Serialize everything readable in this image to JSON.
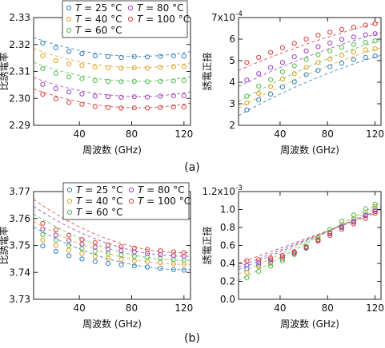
{
  "panel_labels": [
    "(a)",
    "(b)"
  ],
  "temperatures": [
    25,
    40,
    60,
    80,
    100
  ],
  "series_colors": [
    "#2f7dbf",
    "#e0a020",
    "#4cbf4c",
    "#9b3fbf",
    "#d93c3c"
  ],
  "legend": [
    {
      "var": "T",
      "eq": "=",
      "value": "25",
      "unit": "°C"
    },
    {
      "var": "T",
      "eq": "=",
      "value": "40",
      "unit": "°C"
    },
    {
      "var": "T",
      "eq": "=",
      "value": "60",
      "unit": "°C"
    },
    {
      "var": "T",
      "eq": "=",
      "value": "80",
      "unit": "°C"
    },
    {
      "var": "T",
      "eq": "=",
      "value": "100",
      "unit": "°C"
    }
  ],
  "chart_data": [
    {
      "type": "scatter",
      "panel": "(a)",
      "xlabel": "周波数 (GHz)",
      "ylabel": "比誘電率",
      "xlim": [
        5,
        125
      ],
      "ylim": [
        2.29,
        2.33
      ],
      "xticks": [
        40,
        80,
        120
      ],
      "yticks": [
        2.29,
        2.3,
        2.31,
        2.32,
        2.33
      ],
      "ytick_labels": [
        "2.29",
        "2.30",
        "2.31",
        "2.32",
        "2.33"
      ],
      "exponent_label": "",
      "legend": "top-left",
      "x": [
        12,
        22,
        32,
        42,
        52,
        62,
        72,
        82,
        92,
        102,
        112,
        120
      ],
      "series": [
        {
          "values": [
            2.3205,
            2.3188,
            2.3174,
            2.3166,
            2.3158,
            2.3155,
            2.3152,
            2.3155,
            2.3154,
            2.3156,
            2.3158,
            2.3157
          ],
          "fit": {
            "a": 2.3156,
            "b": 1.1e-06,
            "xm": 85
          }
        },
        {
          "values": [
            2.3158,
            2.314,
            2.3128,
            2.3122,
            2.3116,
            2.3114,
            2.3112,
            2.3114,
            2.3112,
            2.3115,
            2.3118,
            2.3118
          ],
          "fit": {
            "a": 2.3114,
            "b": 1.1e-06,
            "xm": 85
          }
        },
        {
          "values": [
            2.311,
            2.3093,
            2.308,
            2.3073,
            2.3066,
            2.3063,
            2.3062,
            2.3063,
            2.3062,
            2.3063,
            2.3065,
            2.3066
          ],
          "fit": {
            "a": 2.3063,
            "b": 1.1e-06,
            "xm": 85
          }
        },
        {
          "values": [
            2.3052,
            2.3036,
            2.3024,
            2.3016,
            2.3008,
            2.3006,
            2.3004,
            2.3006,
            2.3005,
            2.3008,
            2.301,
            2.301
          ],
          "fit": {
            "a": 2.3007,
            "b": 1.1e-06,
            "xm": 85
          }
        },
        {
          "values": [
            2.3015,
            2.2998,
            2.2985,
            2.2978,
            2.297,
            2.2966,
            2.2964,
            2.2965,
            2.2964,
            2.2966,
            2.2968,
            2.2968
          ],
          "fit": {
            "a": 2.2965,
            "b": 1.1e-06,
            "xm": 85
          }
        }
      ]
    },
    {
      "type": "scatter",
      "panel": "(a)",
      "xlabel": "周波数 (GHz)",
      "ylabel": "誘電正接",
      "xlim": [
        5,
        125
      ],
      "ylim": [
        0.0002,
        0.0007
      ],
      "xticks": [
        40,
        80,
        120
      ],
      "yticks": [
        0.0002,
        0.0003,
        0.0004,
        0.0005,
        0.0006,
        0.0007
      ],
      "ytick_labels": [
        "2",
        "3",
        "4",
        "5",
        "6",
        "7x10"
      ],
      "exponent_label": "-4",
      "legend": "none",
      "x": [
        12,
        22,
        32,
        42,
        52,
        62,
        72,
        82,
        92,
        102,
        112,
        120
      ],
      "series": [
        {
          "values": [
            0.000272,
            0.000318,
            0.000345,
            0.000378,
            0.000402,
            0.000435,
            0.000455,
            0.000472,
            0.000488,
            0.000505,
            0.000515,
            0.000522
          ],
          "fit": {
            "x0": 5,
            "y0": 0.000245,
            "x1": 125,
            "y1": 0.000525,
            "c": 6e-07
          }
        },
        {
          "values": [
            0.000305,
            0.000348,
            0.00038,
            0.000415,
            0.00044,
            0.000468,
            0.000492,
            0.000508,
            0.000525,
            0.00054,
            0.00055,
            0.000555
          ],
          "fit": {
            "x0": 5,
            "y0": 0.00028,
            "x1": 125,
            "y1": 0.00056,
            "c": 6e-07
          }
        },
        {
          "values": [
            0.000335,
            0.000382,
            0.000412,
            0.000448,
            0.000476,
            0.000505,
            0.000528,
            0.000545,
            0.000562,
            0.000575,
            0.000585,
            0.000592
          ],
          "fit": {
            "x0": 5,
            "y0": 0.00031,
            "x1": 125,
            "y1": 0.000595,
            "c": 6e-07
          }
        },
        {
          "values": [
            0.00041,
            0.00044,
            0.000468,
            0.000492,
            0.000518,
            0.000545,
            0.000565,
            0.000582,
            0.000598,
            0.00061,
            0.00062,
            0.000625
          ],
          "fit": {
            "x0": 5,
            "y0": 0.00038,
            "x1": 125,
            "y1": 0.00063,
            "c": 5e-07
          }
        },
        {
          "values": [
            0.000492,
            0.000515,
            0.000538,
            0.00056,
            0.00058,
            0.0006,
            0.000618,
            0.000632,
            0.000645,
            0.000655,
            0.000665,
            0.000672
          ],
          "fit": {
            "x0": 5,
            "y0": 0.000455,
            "x1": 125,
            "y1": 0.00068,
            "c": 4e-07
          }
        }
      ]
    },
    {
      "type": "scatter",
      "panel": "(b)",
      "xlabel": "周波数 (GHz)",
      "ylabel": "比誘電率",
      "xlim": [
        5,
        125
      ],
      "ylim": [
        3.73,
        3.77
      ],
      "xticks": [
        40,
        80,
        120
      ],
      "yticks": [
        3.73,
        3.74,
        3.75,
        3.76,
        3.77
      ],
      "ytick_labels": [
        "3.73",
        "3.74",
        "3.75",
        "3.76",
        "3.77"
      ],
      "exponent_label": "",
      "legend": "top-right",
      "x": [
        12,
        22,
        32,
        42,
        52,
        62,
        72,
        82,
        92,
        102,
        112,
        120
      ],
      "series": [
        {
          "values": [
            3.7498,
            3.7478,
            3.7462,
            3.745,
            3.744,
            3.7433,
            3.7428,
            3.7424,
            3.742,
            3.7415,
            3.741,
            3.7408
          ],
          "fit": {
            "a": 3.741,
            "b": 1.2e-06,
            "xm": 120
          }
        },
        {
          "values": [
            3.752,
            3.75,
            3.7482,
            3.747,
            3.746,
            3.7452,
            3.7448,
            3.7443,
            3.744,
            3.7436,
            3.7432,
            3.743
          ],
          "fit": {
            "a": 3.743,
            "b": 1.2e-06,
            "xm": 120
          }
        },
        {
          "values": [
            3.754,
            3.752,
            3.75,
            3.7488,
            3.7478,
            3.747,
            3.7465,
            3.746,
            3.7456,
            3.7452,
            3.7448,
            3.7445
          ],
          "fit": {
            "a": 3.7445,
            "b": 1.3e-06,
            "xm": 120
          }
        },
        {
          "values": [
            3.756,
            3.7538,
            3.7518,
            3.7505,
            3.7494,
            3.7486,
            3.748,
            3.7476,
            3.747,
            3.7466,
            3.7462,
            3.746
          ],
          "fit": {
            "a": 3.746,
            "b": 1.4e-06,
            "xm": 120
          }
        },
        {
          "values": [
            3.7582,
            3.7558,
            3.7538,
            3.7522,
            3.751,
            3.7502,
            3.7495,
            3.749,
            3.7485,
            3.748,
            3.7476,
            3.7473
          ],
          "fit": {
            "a": 3.7473,
            "b": 1.5e-06,
            "xm": 120
          }
        }
      ]
    },
    {
      "type": "scatter",
      "panel": "(b)",
      "xlabel": "周波数 (GHz)",
      "ylabel": "誘電正接",
      "xlim": [
        5,
        125
      ],
      "ylim": [
        0,
        0.0012
      ],
      "xticks": [
        40,
        80,
        120
      ],
      "yticks": [
        0,
        0.0002,
        0.0004,
        0.0006,
        0.0008,
        0.001,
        0.0012
      ],
      "ytick_labels": [
        "0.0",
        "0.2",
        "0.4",
        "0.6",
        "0.8",
        "1.0",
        "1.2x10"
      ],
      "exponent_label": "-3",
      "legend": "none",
      "x": [
        12,
        22,
        32,
        42,
        52,
        62,
        72,
        82,
        92,
        102,
        112,
        120
      ],
      "series": [
        {
          "values": [
            0.00034,
            0.00038,
            0.00041,
            0.00045,
            0.00051,
            0.00057,
            0.00066,
            0.00074,
            0.00081,
            0.00087,
            0.00094,
            0.001
          ],
          "fit": {
            "x0": 5,
            "y0": 0.00033,
            "x1": 125,
            "y1": 0.00101,
            "c": 0
          }
        },
        {
          "values": [
            0.0003,
            0.00036,
            0.0004,
            0.00045,
            0.00051,
            0.00058,
            0.00067,
            0.00075,
            0.00083,
            0.0009,
            0.00097,
            0.00103
          ],
          "fit": {
            "x0": 5,
            "y0": 0.00028,
            "x1": 125,
            "y1": 0.00104,
            "c": 0
          }
        },
        {
          "values": [
            0.00024,
            0.00031,
            0.00037,
            0.00043,
            0.0005,
            0.00059,
            0.00069,
            0.00078,
            0.00087,
            0.00094,
            0.00101,
            0.00106
          ],
          "fit": {
            "x0": 5,
            "y0": 0.00021,
            "x1": 125,
            "y1": 0.00108,
            "c": 0
          }
        },
        {
          "values": [
            0.00038,
            0.00041,
            0.00044,
            0.00047,
            0.00052,
            0.00058,
            0.00066,
            0.00073,
            0.0008,
            0.00086,
            0.00093,
            0.00098
          ],
          "fit": {
            "x0": 5,
            "y0": 0.00036,
            "x1": 125,
            "y1": 0.001,
            "c": 0
          }
        },
        {
          "values": [
            0.00043,
            0.00044,
            0.00046,
            0.00049,
            0.00053,
            0.00058,
            0.00065,
            0.00071,
            0.00078,
            0.00084,
            0.0009,
            0.00096
          ],
          "fit": {
            "x0": 5,
            "y0": 0.0004,
            "x1": 125,
            "y1": 0.00098,
            "c": 0
          }
        }
      ]
    }
  ]
}
